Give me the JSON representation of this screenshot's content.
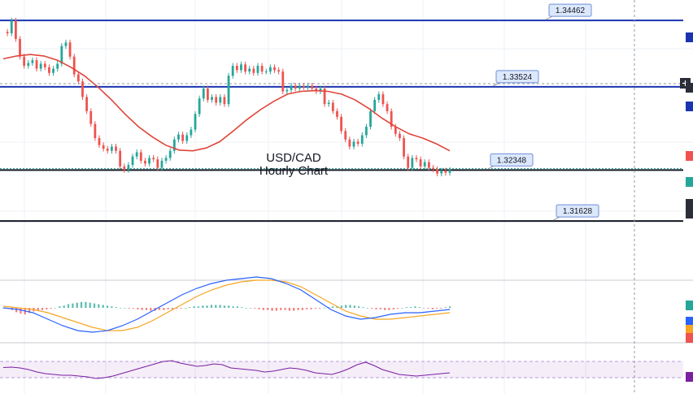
{
  "chart_data": {
    "type": "candlestick",
    "title_line1": "USD/CAD",
    "title_line2": "Hourly Chart",
    "ylim": [
      1.3085,
      1.3475
    ],
    "price_series": [
      1.343,
      1.3428,
      1.3446,
      1.342,
      1.3395,
      1.3382,
      1.3386,
      1.339,
      1.3378,
      1.3385,
      1.338,
      1.3372,
      1.3378,
      1.3385,
      1.341,
      1.3415,
      1.3395,
      1.337,
      1.336,
      1.3338,
      1.3318,
      1.33,
      1.328,
      1.327,
      1.3265,
      1.3262,
      1.3268,
      1.3262,
      1.324,
      1.3235,
      1.3242,
      1.3254,
      1.326,
      1.3248,
      1.3244,
      1.3252,
      1.325,
      1.3238,
      1.3248,
      1.3252,
      1.3262,
      1.3278,
      1.3285,
      1.3276,
      1.3284,
      1.3292,
      1.3314,
      1.3336,
      1.335,
      1.3334,
      1.3338,
      1.333,
      1.3338,
      1.3328,
      1.3368,
      1.3382,
      1.3376,
      1.3384,
      1.3374,
      1.3378,
      1.3372,
      1.3382,
      1.3374,
      1.3374,
      1.338,
      1.3376,
      1.3374,
      1.3346,
      1.3348,
      1.3354,
      1.335,
      1.3354,
      1.3352,
      1.3354,
      1.335,
      1.3346,
      1.335,
      1.3328,
      1.333,
      1.3318,
      1.331,
      1.329,
      1.3278,
      1.3268,
      1.3275,
      1.3272,
      1.3284,
      1.3296,
      1.3318,
      1.3334,
      1.3342,
      1.3328,
      1.3318,
      1.3296,
      1.3286,
      1.328,
      1.3254,
      1.3238,
      1.3252,
      1.325,
      1.324,
      1.3246,
      1.3238,
      1.3236,
      1.323,
      1.3234,
      1.3231,
      1.3235
    ],
    "moving_average": [
      1.3392,
      1.3396,
      1.3398,
      1.3396,
      1.339,
      1.338,
      1.3368,
      1.3352,
      1.3334,
      1.3314,
      1.3296,
      1.3282,
      1.327,
      1.3263,
      1.3262,
      1.3266,
      1.3275,
      1.329,
      1.3306,
      1.332,
      1.3332,
      1.3342,
      1.3346,
      1.3347,
      1.3346,
      1.3342,
      1.3334,
      1.3322,
      1.3308,
      1.3296,
      1.3286,
      1.328,
      1.3272,
      1.3262
    ],
    "price_levels": [
      {
        "value": "1.34462",
        "level": 1.34462,
        "color": "#1a34b0",
        "line": "blue"
      },
      {
        "value": "1.33524",
        "level": 1.33524,
        "color": "#1a34b0",
        "line": "blue"
      },
      {
        "value": "1.32348",
        "level": 1.32348,
        "color": "#131722",
        "line": "black"
      },
      {
        "value": "1.31628",
        "level": 1.31628,
        "color": "#131722",
        "line": "black"
      }
    ],
    "macd_histogram": [
      0,
      -1,
      -3,
      -6,
      -8,
      -9,
      -7,
      -5,
      -4,
      -3,
      -2,
      -1,
      0,
      2,
      3,
      5,
      6,
      7,
      8,
      8,
      7,
      6,
      5,
      4,
      3,
      2,
      1,
      0,
      0,
      -1,
      -1,
      -2,
      -3,
      -3,
      -4,
      -4,
      -3,
      -3,
      -2,
      -2,
      -1,
      -1,
      0,
      1,
      2,
      2,
      3,
      3,
      4,
      4,
      4,
      3,
      3,
      2,
      2,
      1,
      0,
      0,
      -1,
      -2,
      -3,
      -3,
      -4,
      -4,
      -3,
      -3,
      -4,
      -4,
      -3,
      -3,
      -2,
      -2,
      -1,
      -1,
      0,
      1,
      2,
      2,
      3,
      4,
      4,
      3,
      2,
      1,
      0,
      -1,
      -2,
      -2,
      -3,
      -3,
      -2,
      -1,
      0,
      1,
      1,
      2,
      1,
      0,
      -1,
      -2,
      -1,
      -1,
      1,
      2
    ],
    "macd_line": [
      0,
      -2,
      -6,
      -14,
      -22,
      -28,
      -30,
      -28,
      -22,
      -14,
      -4,
      6,
      16,
      24,
      30,
      34,
      36,
      38,
      36,
      30,
      22,
      10,
      -2,
      -10,
      -14,
      -12,
      -8,
      -6,
      -6,
      -4,
      -2
    ],
    "signal_line": [
      2,
      0,
      -2,
      -6,
      -12,
      -18,
      -24,
      -28,
      -28,
      -24,
      -16,
      -6,
      4,
      14,
      22,
      28,
      32,
      34,
      34,
      32,
      26,
      16,
      6,
      -4,
      -10,
      -14,
      -14,
      -12,
      -10,
      -8,
      -6
    ],
    "rsi": [
      55,
      56,
      54,
      50,
      44,
      40,
      38,
      36,
      36,
      34,
      32,
      28,
      30,
      34,
      40,
      46,
      52,
      58,
      64,
      70,
      72,
      66,
      62,
      58,
      60,
      64,
      62,
      54,
      52,
      50,
      48,
      44,
      46,
      50,
      54,
      52,
      48,
      42,
      40,
      38,
      44,
      52,
      62,
      68,
      60,
      50,
      44,
      38,
      36,
      34,
      36,
      38,
      40,
      42
    ],
    "rsi_band": [
      30,
      70
    ],
    "indicator_colors": {
      "ma": "#e0453a",
      "macd": "#2962ff",
      "signal": "#f5a623",
      "rsi": "#7b1fa2",
      "hist_up": "#26a69a",
      "hist_down": "#ef5350",
      "up": "#26a69a",
      "down": "#ef5350"
    },
    "right_tags": [
      {
        "color": "#1a34b0"
      },
      {
        "color": "#2a2e39"
      },
      {
        "color": "#1a34b0"
      },
      {
        "color": "#ef5350"
      },
      {
        "color": "#26a69a"
      },
      {
        "color": "#2a2e39"
      },
      {
        "color": "#2a2e39"
      },
      {
        "color": "#26a69a"
      },
      {
        "color": "#2962ff"
      },
      {
        "color": "#f5a623"
      },
      {
        "color": "#ef5350"
      },
      {
        "color": "#7b1fa2"
      }
    ]
  }
}
